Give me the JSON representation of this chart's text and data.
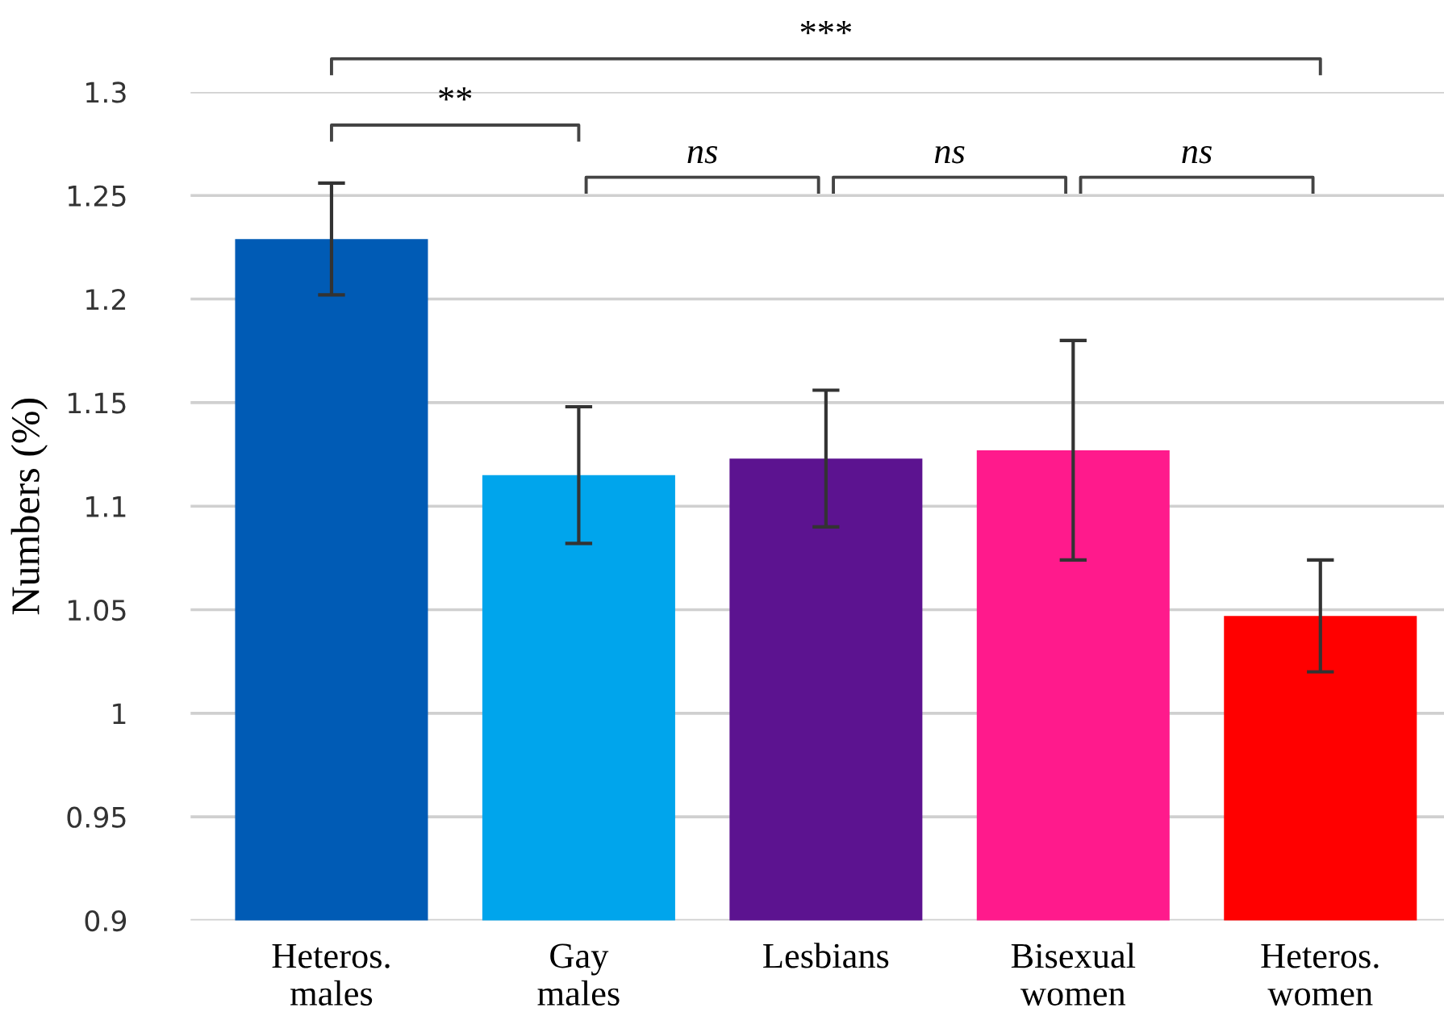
{
  "chart_data": {
    "type": "bar",
    "ylabel": "Numbers (%)",
    "categories": [
      "Heteros.\nmales",
      "Gay\nmales",
      "Lesbians",
      "Bisexual\nwomen",
      "Heteros.\nwomen"
    ],
    "values": [
      1.229,
      1.115,
      1.123,
      1.127,
      1.047
    ],
    "errors": [
      0.027,
      0.033,
      0.033,
      0.053,
      0.027
    ],
    "colors": [
      "#005bb5",
      "#00a5ec",
      "#5c1390",
      "#ff1a8c",
      "#ff0000"
    ],
    "ylim": [
      0.9,
      1.3
    ],
    "yticks": [
      0.9,
      0.95,
      1,
      1.05,
      1.1,
      1.15,
      1.2,
      1.25,
      1.3
    ],
    "grid": "y",
    "annotations": [
      "***",
      "**",
      "ns",
      "ns",
      "ns"
    ]
  }
}
